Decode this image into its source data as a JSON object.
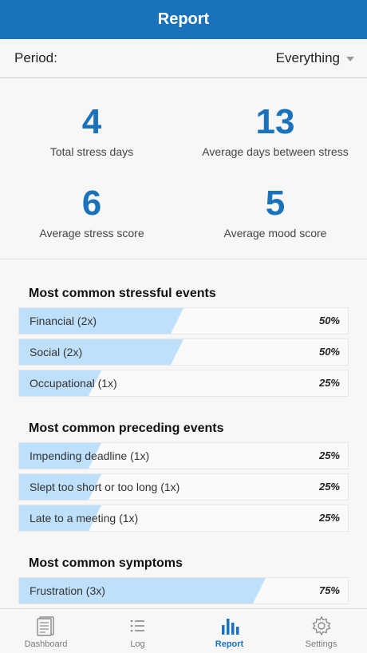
{
  "header": {
    "title": "Report"
  },
  "period": {
    "label": "Period:",
    "value": "Everything"
  },
  "stats": [
    {
      "value": "4",
      "label": "Total stress days"
    },
    {
      "value": "13",
      "label": "Average days between stress"
    },
    {
      "value": "6",
      "label": "Average stress score"
    },
    {
      "value": "5",
      "label": "Average mood score"
    }
  ],
  "sections": [
    {
      "title": "Most common stressful events",
      "items": [
        {
          "name": "Financial (2x)",
          "percent": "50%",
          "fraction": 0.5
        },
        {
          "name": "Social (2x)",
          "percent": "50%",
          "fraction": 0.5
        },
        {
          "name": "Occupational (1x)",
          "percent": "25%",
          "fraction": 0.25
        }
      ]
    },
    {
      "title": "Most common preceding events",
      "items": [
        {
          "name": "Impending deadline (1x)",
          "percent": "25%",
          "fraction": 0.25
        },
        {
          "name": "Slept too short or too long (1x)",
          "percent": "25%",
          "fraction": 0.25
        },
        {
          "name": "Late to a meeting (1x)",
          "percent": "25%",
          "fraction": 0.25
        }
      ]
    },
    {
      "title": "Most common symptoms",
      "items": [
        {
          "name": "Frustration (3x)",
          "percent": "75%",
          "fraction": 0.75
        }
      ]
    }
  ],
  "tabs": [
    {
      "label": "Dashboard",
      "icon": "dashboard-icon"
    },
    {
      "label": "Log",
      "icon": "list-icon"
    },
    {
      "label": "Report",
      "icon": "bar-chart-icon",
      "active": true
    },
    {
      "label": "Settings",
      "icon": "gear-icon"
    }
  ],
  "colors": {
    "accent": "#1a72bb",
    "bar_fill": "#bfe0fb"
  }
}
